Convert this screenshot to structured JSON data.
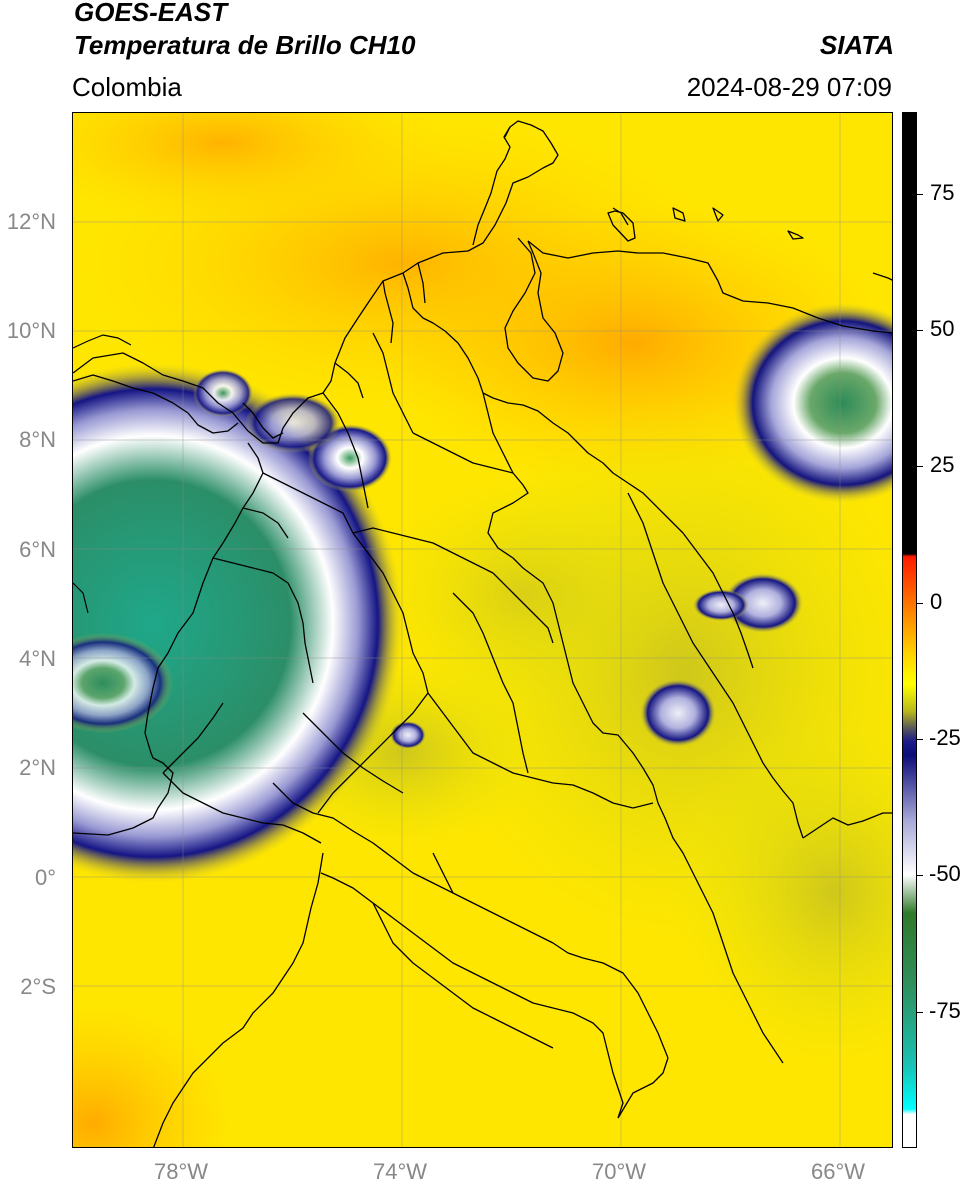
{
  "header": {
    "satellite": "GOES-EAST",
    "product": "Temperatura de Brillo CH10",
    "source": "SIATA",
    "region": "Colombia",
    "datetime": "2024-08-29 07:09"
  },
  "map": {
    "lat_ticks": [
      "12°N",
      "10°N",
      "8°N",
      "6°N",
      "4°N",
      "2°N",
      "0°",
      "2°S"
    ],
    "lon_ticks": [
      "78°W",
      "74°W",
      "70°W",
      "66°W"
    ],
    "extent": {
      "lon_min": -80.0,
      "lon_max": -65.0,
      "lat_min": -5.0,
      "lat_max": 14.0
    },
    "storm_cells": [
      {
        "lon": -79.0,
        "lat": 5.5,
        "core_color": "#1fa88a"
      },
      {
        "lon": -65.7,
        "lat": 8.8,
        "core_color": "#2e8b57"
      },
      {
        "lon": -74.9,
        "lat": 7.6,
        "core_color": "#3a9a5a"
      },
      {
        "lon": -68.8,
        "lat": 3.2,
        "core_color": "#e8e8f4"
      },
      {
        "lon": -67.9,
        "lat": 4.9,
        "core_color": "#cfd3ea"
      }
    ]
  },
  "colorbar": {
    "ticks": [
      "75",
      "50",
      "25",
      "0",
      "-25",
      "-50",
      "-75"
    ],
    "tick_values": [
      75,
      50,
      25,
      0,
      -25,
      -50,
      -75
    ],
    "range": [
      -100,
      90
    ],
    "stops": [
      {
        "v": 90,
        "c": "#000000"
      },
      {
        "v": 9,
        "c": "#000000"
      },
      {
        "v": 8.5,
        "c": "#ff1a00"
      },
      {
        "v": -2,
        "c": "#ff8800"
      },
      {
        "v": -10,
        "c": "#ffd800"
      },
      {
        "v": -15,
        "c": "#ffff00"
      },
      {
        "v": -20,
        "c": "#b6b61c"
      },
      {
        "v": -23,
        "c": "#5a5a5a"
      },
      {
        "v": -25.5,
        "c": "#1a1a8a"
      },
      {
        "v": -28,
        "c": "#0d0d7a"
      },
      {
        "v": -40,
        "c": "#a8a8d8"
      },
      {
        "v": -50,
        "c": "#ffffff"
      },
      {
        "v": -57,
        "c": "#2f7a2a"
      },
      {
        "v": -70,
        "c": "#2f8f5c"
      },
      {
        "v": -85,
        "c": "#19c2b4"
      },
      {
        "v": -93,
        "c": "#00ffff"
      },
      {
        "v": -94,
        "c": "#ffffff"
      },
      {
        "v": -100,
        "c": "#ffffff"
      }
    ]
  }
}
